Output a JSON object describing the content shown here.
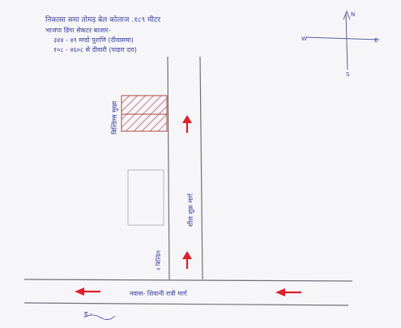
{
  "header_notes": [
    "निकासा समा तोमड़ बेल कोलाज .१८९ मीटर",
    "भाजपा डिंगा सेकटर बाजार-",
    "३४४ - ४१ मग्डो पुराणि (दीवासमा)",
    "१०८ - ४६०८ से दीवारी (पाडरा दरा)"
  ],
  "compass": {
    "north": "N",
    "south": "S",
    "east": "E",
    "west": "W"
  },
  "labels": {
    "left_building": "बिल्डिंग्स मुख्य",
    "vertical_road": "शील शुक्र मार्ग",
    "corner": "२ बिल्डिंग",
    "main_road": "नवास- शिवानी रात्री मार्ग",
    "signature": "ह.-"
  },
  "colors": {
    "ink": "#3a3f9c",
    "pencil": "#707078",
    "arrow": "#e0202a",
    "hatch": "#b04848"
  }
}
